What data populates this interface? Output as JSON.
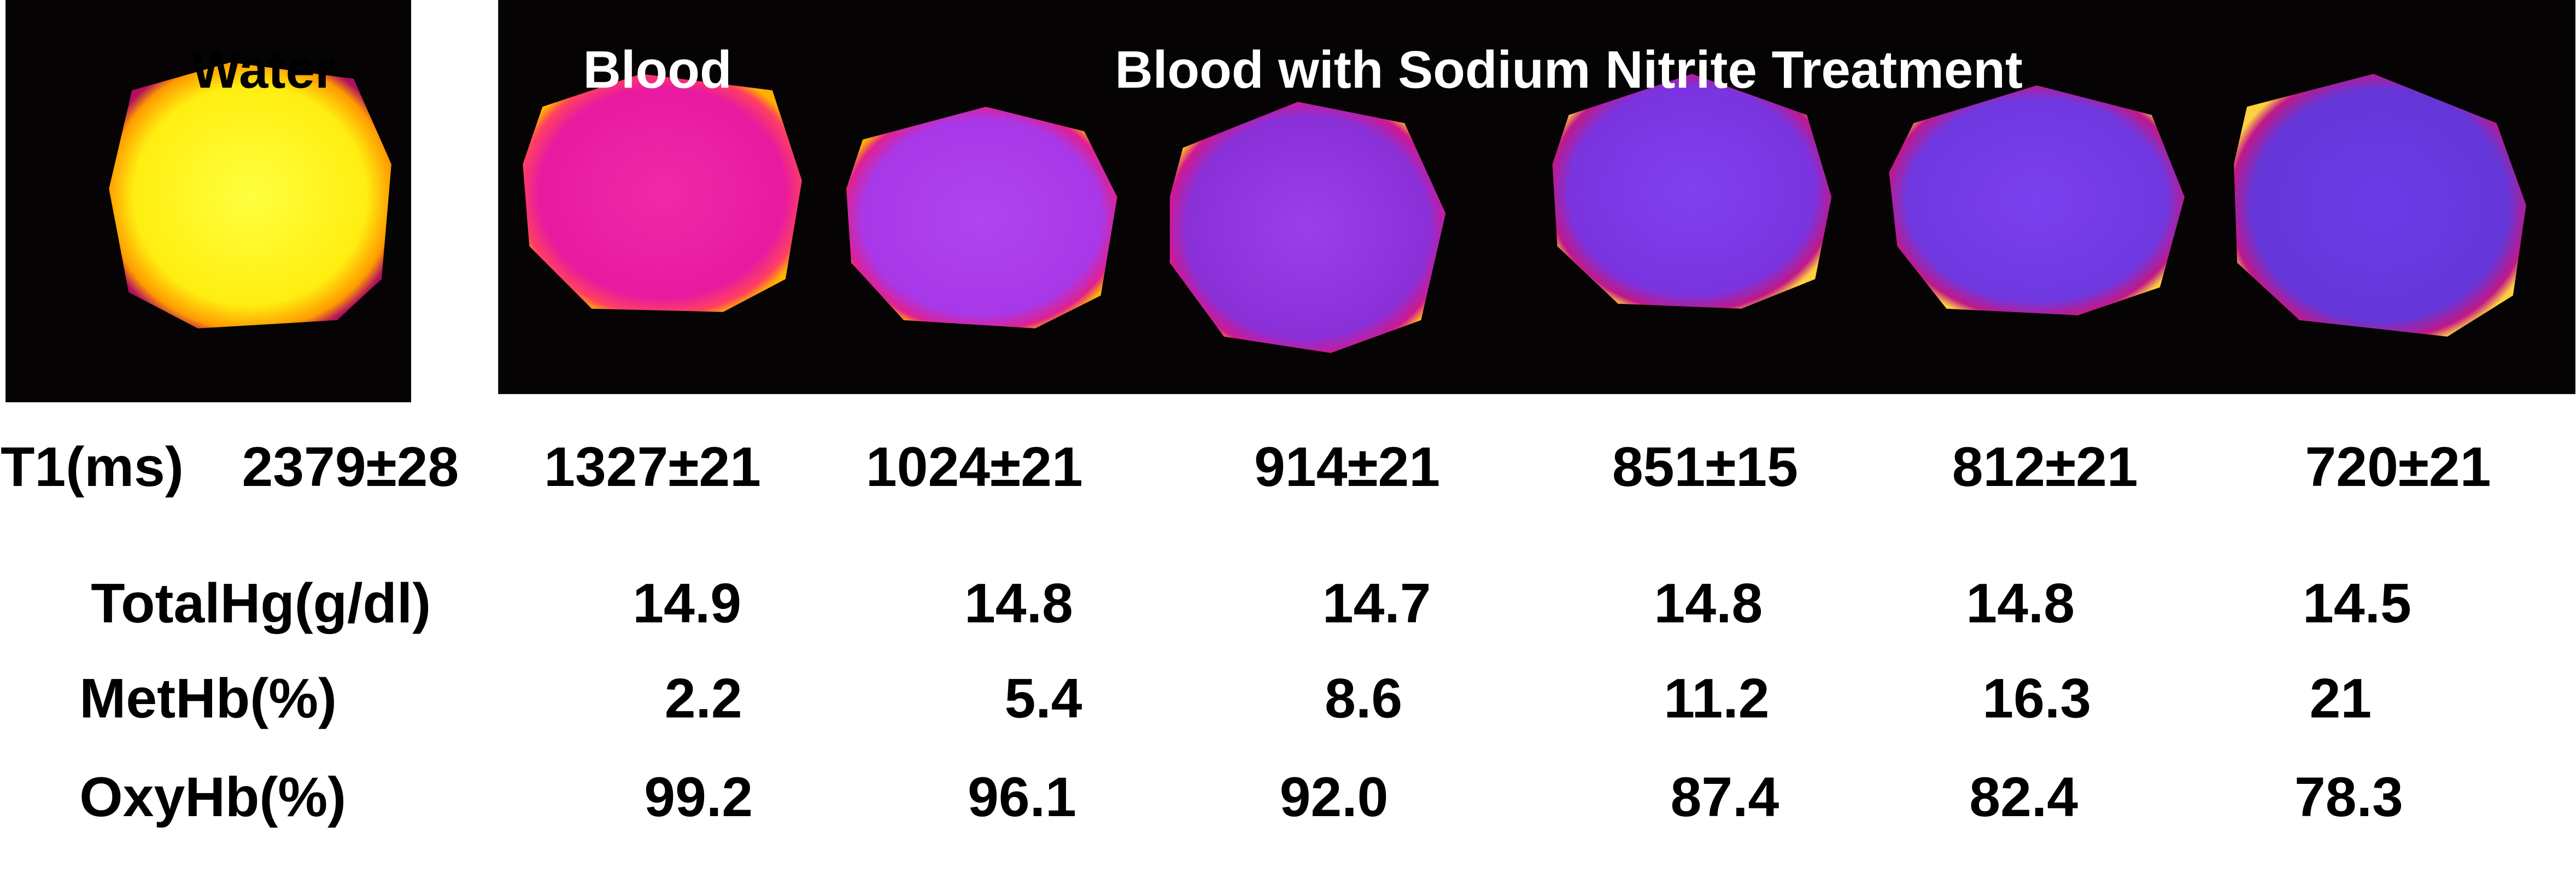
{
  "panels": {
    "water_label": "Water",
    "blood_label": "Blood",
    "treatment_label": "Blood with Sodium Nitrite Treatment"
  },
  "table": {
    "rows": [
      {
        "label": "T1(ms)",
        "values": [
          "2379±28",
          "1327±21",
          "1024±21",
          "914±21",
          "851±15",
          "812±21",
          "720±21"
        ]
      },
      {
        "label": "TotalHg(g/dl)",
        "values": [
          "14.9",
          "14.8",
          "14.7",
          "14.8",
          "14.8",
          "14.5"
        ]
      },
      {
        "label": "MetHb(%)",
        "values": [
          "2.2",
          "5.4",
          "8.6",
          "11.2",
          "16.3",
          "21"
        ]
      },
      {
        "label": "OxyHb(%)",
        "values": [
          "99.2",
          "96.1",
          "92.0",
          "87.4",
          "82.4",
          "78.3"
        ]
      }
    ]
  }
}
